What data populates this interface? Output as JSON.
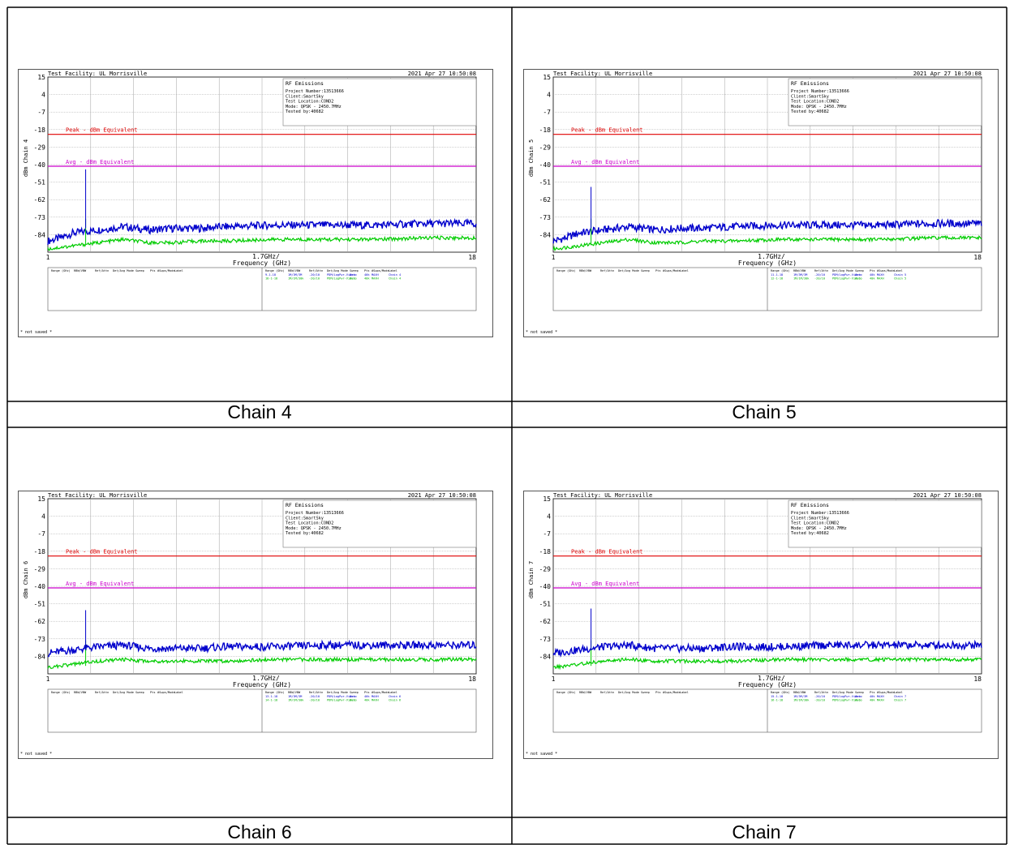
{
  "common": {
    "facility": "Test Facility: UL Morrisville",
    "datetime": "2021 Apr 27   10:50:08",
    "info_lines": [
      "RF Emissions",
      "Project Number:13513666",
      "Client:SmartSky",
      "Test Location:COND2",
      "Mode: QPSK - 2450.7MHz",
      "Tested by:40682"
    ],
    "peak_label": "Peak - dBm Equivalent",
    "avg_label": "Avg - dBm Equivalent",
    "x_center_label": "1.7GHz/",
    "x_axis_label": "Frequency (GHz)",
    "not_saved": "* not saved *",
    "table_left_headers": [
      "Range (GHz)",
      "RBW/VBW",
      "Ref/Attn",
      "Det/Avg Mode",
      "Sweep",
      "Pts",
      "#Swps/Mode",
      "Label"
    ],
    "table_right_headers": [
      "Range (GHz)",
      "RBW/VBW",
      "Ref/Attn",
      "Det/Avg Mode",
      "Sweep",
      "Pts",
      "#Swps/Mode",
      "Label"
    ],
    "colors": {
      "peak_trace": "#0000cc",
      "avg_trace": "#00cc00",
      "peak_limit": "#e00000",
      "avg_limit": "#cc00cc",
      "grid": "#a0a0a0"
    }
  },
  "chart_data": [
    {
      "caption": "Chain 4",
      "ylabel": "dBm Chain 4",
      "type": "line",
      "x_range": [
        1,
        18
      ],
      "x_ticks": [
        "1",
        "18"
      ],
      "y_ticks": [
        15,
        4,
        -7,
        -18,
        -29,
        -40,
        -51,
        -62,
        -73,
        -84
      ],
      "ylim": [
        -95,
        15
      ],
      "peak_limit": -21,
      "avg_limit": -41,
      "spike": {
        "x": 2.5,
        "peak": -43,
        "avg": -74
      },
      "series": [
        {
          "x": [
            1,
            1.5,
            2,
            2.5,
            3,
            4,
            5,
            6,
            7,
            8,
            10,
            12,
            14,
            16,
            18
          ],
          "values": [
            -88,
            -86,
            -83,
            -82,
            -81,
            -79,
            -81,
            -80,
            -80,
            -79,
            -78,
            -78,
            -78,
            -77,
            -77
          ]
        },
        {
          "x": [
            1,
            1.5,
            2,
            2.5,
            3,
            4,
            5,
            6,
            7,
            8,
            10,
            12,
            14,
            16,
            18
          ],
          "values": [
            -93,
            -92,
            -91,
            -90,
            -89,
            -87,
            -89,
            -89,
            -88,
            -88,
            -87,
            -87,
            -87,
            -86,
            -86
          ]
        }
      ],
      "table_right_rows": [
        [
          "9-1-18",
          "1M/3M/3M",
          "-20/10",
          "PDM/LogPwr-Video",
          "Auto",
          "40k",
          "MAXH",
          "Chain 4"
        ],
        [
          "18-1-18",
          "1M/1M/30k",
          "-20/10",
          "PDM/LogPwr-Video",
          "Auto",
          "40k",
          "MAXH",
          "Chain 4"
        ]
      ]
    },
    {
      "caption": "Chain 5",
      "ylabel": "dBm Chain 5",
      "type": "line",
      "x_range": [
        1,
        18
      ],
      "x_ticks": [
        "1",
        "18"
      ],
      "y_ticks": [
        15,
        4,
        -7,
        -18,
        -29,
        -40,
        -51,
        -62,
        -73,
        -84
      ],
      "ylim": [
        -95,
        15
      ],
      "peak_limit": -21,
      "avg_limit": -41,
      "spike": {
        "x": 2.5,
        "peak": -54,
        "avg": -74
      },
      "series": [
        {
          "x": [
            1,
            1.5,
            2,
            2.5,
            3,
            4,
            5,
            6,
            7,
            8,
            10,
            12,
            14,
            16,
            18
          ],
          "values": [
            -88,
            -86,
            -83,
            -82,
            -81,
            -79,
            -81,
            -80,
            -80,
            -79,
            -78,
            -78,
            -78,
            -77,
            -77
          ]
        },
        {
          "x": [
            1,
            1.5,
            2,
            2.5,
            3,
            4,
            5,
            6,
            7,
            8,
            10,
            12,
            14,
            16,
            18
          ],
          "values": [
            -93,
            -92,
            -91,
            -90,
            -89,
            -87,
            -89,
            -89,
            -88,
            -88,
            -87,
            -87,
            -87,
            -86,
            -86
          ]
        }
      ],
      "table_right_rows": [
        [
          "11-1-18",
          "1M/3M/3M",
          "-20/10",
          "PDM/LogPwr-Video",
          "Auto",
          "40k",
          "MAXH",
          "Chain 5"
        ],
        [
          "12-1-18",
          "1M/1M/30k",
          "-20/10",
          "PDM/LogPwr-Video",
          "Auto",
          "40k",
          "MAXH",
          "Chain 5"
        ]
      ]
    },
    {
      "caption": "Chain 6",
      "ylabel": "dBm Chain 6",
      "type": "line",
      "x_range": [
        1,
        18
      ],
      "x_ticks": [
        "1",
        "18"
      ],
      "y_ticks": [
        15,
        4,
        -7,
        -18,
        -29,
        -40,
        -51,
        -62,
        -73,
        -84
      ],
      "ylim": [
        -95,
        15
      ],
      "peak_limit": -21,
      "avg_limit": -41,
      "spike": {
        "x": 2.5,
        "peak": -55,
        "avg": -74
      },
      "series": [
        {
          "x": [
            1,
            1.5,
            2,
            2.5,
            3,
            4,
            5,
            6,
            7,
            8,
            10,
            12,
            14,
            16,
            18
          ],
          "values": [
            -82,
            -81,
            -80,
            -79,
            -78,
            -77,
            -79,
            -79,
            -79,
            -78,
            -78,
            -77,
            -77,
            -77,
            -77
          ]
        },
        {
          "x": [
            1,
            1.5,
            2,
            2.5,
            3,
            4,
            5,
            6,
            7,
            8,
            10,
            12,
            14,
            16,
            18
          ],
          "values": [
            -91,
            -90,
            -89,
            -88,
            -87,
            -86,
            -87,
            -87,
            -87,
            -87,
            -86,
            -86,
            -86,
            -86,
            -86
          ]
        }
      ],
      "table_right_rows": [
        [
          "13-1-18",
          "1M/3M/3M",
          "-20/10",
          "PDM/LogPwr-Video",
          "Auto",
          "40k",
          "MAXH",
          "Chain 6"
        ],
        [
          "14-1-18",
          "1M/1M/30k",
          "-20/10",
          "PDM/LogPwr-Video",
          "Auto",
          "40k",
          "MAXH",
          "Chain 6"
        ]
      ]
    },
    {
      "caption": "Chain 7",
      "ylabel": "dBm Chain 7",
      "type": "line",
      "x_range": [
        1,
        18
      ],
      "x_ticks": [
        "1",
        "18"
      ],
      "y_ticks": [
        15,
        4,
        -7,
        -18,
        -29,
        -40,
        -51,
        -62,
        -73,
        -84
      ],
      "ylim": [
        -95,
        15
      ],
      "peak_limit": -21,
      "avg_limit": -41,
      "spike": {
        "x": 2.5,
        "peak": -54,
        "avg": -74
      },
      "series": [
        {
          "x": [
            1,
            1.5,
            2,
            2.5,
            3,
            4,
            5,
            6,
            7,
            8,
            10,
            12,
            14,
            16,
            18
          ],
          "values": [
            -82,
            -81,
            -80,
            -79,
            -78,
            -77,
            -79,
            -79,
            -79,
            -78,
            -78,
            -77,
            -77,
            -77,
            -77
          ]
        },
        {
          "x": [
            1,
            1.5,
            2,
            2.5,
            3,
            4,
            5,
            6,
            7,
            8,
            10,
            12,
            14,
            16,
            18
          ],
          "values": [
            -91,
            -90,
            -89,
            -88,
            -87,
            -86,
            -87,
            -87,
            -87,
            -87,
            -86,
            -86,
            -86,
            -86,
            -86
          ]
        }
      ],
      "table_right_rows": [
        [
          "15-1-18",
          "1M/3M/3M",
          "-20/10",
          "PDM/LogPwr-Video",
          "Auto",
          "40k",
          "MAXH",
          "Chain 7"
        ],
        [
          "16-1-18",
          "1M/1M/30k",
          "-20/10",
          "PDM/LogPwr-Video",
          "Auto",
          "40k",
          "MAXH",
          "Chain 7"
        ]
      ]
    }
  ]
}
